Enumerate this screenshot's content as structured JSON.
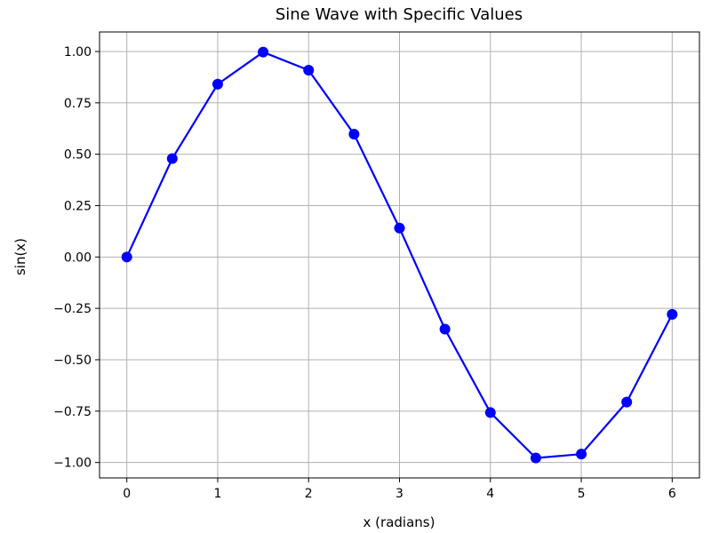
{
  "chart_data": {
    "type": "line",
    "title": "Sine Wave with Specific Values",
    "xlabel": "x (radians)",
    "ylabel": "sin(x)",
    "xlim": [
      -0.3,
      6.3
    ],
    "ylim": [
      -1.075,
      1.095
    ],
    "grid": true,
    "xticks": [
      0,
      1,
      2,
      3,
      4,
      5,
      6
    ],
    "xtick_labels": [
      "0",
      "1",
      "2",
      "3",
      "4",
      "5",
      "6"
    ],
    "yticks": [
      1.0,
      0.75,
      0.5,
      0.25,
      0.0,
      -0.25,
      -0.5,
      -0.75,
      -1.0
    ],
    "ytick_labels": [
      "1.00",
      "0.75",
      "0.50",
      "0.25",
      "0.00",
      "−0.25",
      "−0.50",
      "−0.75",
      "−1.00"
    ],
    "series": [
      {
        "color": "#0000ff",
        "marker": "circle",
        "x": [
          0,
          0.5,
          1.0,
          1.5,
          2.0,
          2.5,
          3.0,
          3.5,
          4.0,
          4.5,
          5.0,
          5.5,
          6.0
        ],
        "y": [
          0.0,
          0.479,
          0.841,
          0.997,
          0.909,
          0.598,
          0.141,
          -0.351,
          -0.757,
          -0.978,
          -0.959,
          -0.706,
          -0.279
        ]
      }
    ]
  }
}
